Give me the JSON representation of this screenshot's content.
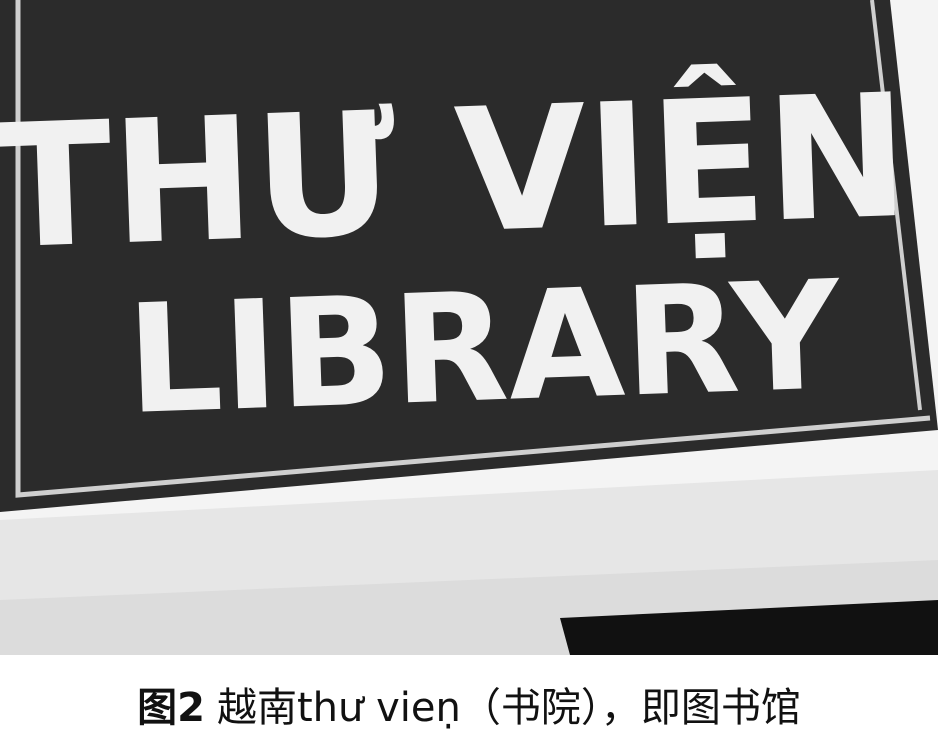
{
  "photo": {
    "sign": {
      "line1": "THƯ VIỆN",
      "line2": "LIBRARY",
      "board_color": "#2b2b2b",
      "text_color": "#f1f1f1",
      "frame_color": "#d9d9d9"
    }
  },
  "caption": {
    "label": "图2",
    "text": "越南thư vieṇ（书院），即图书馆"
  }
}
